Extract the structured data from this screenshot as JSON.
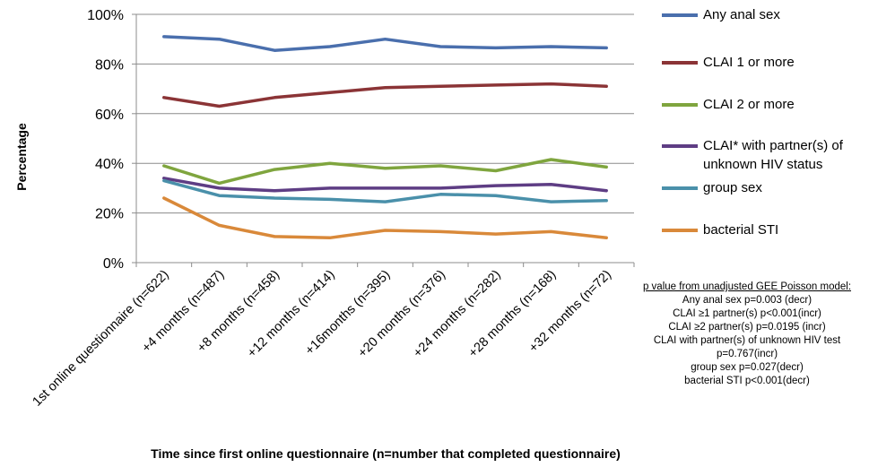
{
  "chart_data": {
    "type": "line",
    "xlabel": "Time since first online questionnaire (n=number that completed questionnaire)",
    "ylabel": "Percentage",
    "ylim": [
      0,
      100
    ],
    "yticks": [
      "0%",
      "20%",
      "40%",
      "60%",
      "80%",
      "100%"
    ],
    "grid": true,
    "legend_position": "right",
    "categories": [
      "1st online questionnaire (n=622)",
      "+4 months (n=487)",
      "+8 months (n=458)",
      "+12 months (n=414)",
      "+16months  (n=395)",
      "+20 months (n=376)",
      "+24 months (n=282)",
      "+28 months (n=168)",
      "+32 months (n=72)"
    ],
    "series": [
      {
        "name": "Any anal sex",
        "color": "#4a6fad",
        "values": [
          91,
          90,
          85.5,
          87,
          90,
          87,
          86.5,
          87,
          86.5
        ]
      },
      {
        "name": "CLAI 1 or more",
        "color": "#8b3436",
        "values": [
          66.5,
          63,
          66.5,
          68.5,
          70.5,
          71,
          71.5,
          72,
          71
        ]
      },
      {
        "name": "CLAI 2 or more",
        "color": "#7fa53e",
        "values": [
          39,
          32,
          37.5,
          40,
          38,
          39,
          37,
          41.5,
          38.5
        ]
      },
      {
        "name": "CLAI* with partner(s) of unknown HIV status",
        "color": "#5e3d84",
        "values": [
          34,
          30,
          29,
          30,
          30,
          30,
          31,
          31.5,
          29
        ]
      },
      {
        "name": "group sex",
        "color": "#4a90aa",
        "values": [
          33,
          27,
          26,
          25.5,
          24.5,
          27.5,
          27,
          24.5,
          25
        ]
      },
      {
        "name": "bacterial STI",
        "color": "#d9893a",
        "values": [
          26,
          15,
          10.5,
          10,
          13,
          12.5,
          11.5,
          12.5,
          10
        ]
      }
    ]
  },
  "pvalue_note": {
    "title": "p value from unadjusted GEE Poisson model:",
    "lines": [
      "Any anal sex p=0.003 (decr)",
      "CLAI ≥1 partner(s) p<0.001(incr)",
      "CLAI ≥2 partner(s) p=0.0195 (incr)",
      "CLAI with partner(s) of unknown HIV test",
      "p=0.767(incr)",
      "group sex p=0.027(decr)",
      "bacterial STI p<0.001(decr)"
    ]
  }
}
